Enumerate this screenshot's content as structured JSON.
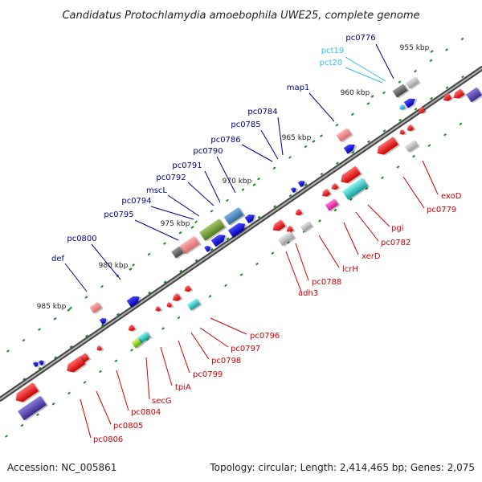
{
  "title": "Candidatus Protochlamydia amoebophila UWE25, complete genome",
  "footer": {
    "accession": "Accession: NC_005861",
    "topology": "Topology: circular; Length: 2,414,465 bp; Genes: 2,075"
  },
  "kbp_ticks": [
    "955 kbp",
    "960 kbp",
    "965 kbp",
    "970 kbp",
    "975 kbp",
    "980 kbp",
    "985 kbp"
  ],
  "colors": {
    "forward_label": "#00008b",
    "reverse_label": "#cc0000",
    "tRNA_label": "#33bbee",
    "backbone": "#8a8a8a",
    "tick": "#1a8a1a"
  },
  "forward_labels": [
    "pc0776",
    "map1",
    "pc0784",
    "pc0785",
    "pc0786",
    "pc0790",
    "pc0791",
    "pc0792",
    "mscL",
    "pc0794",
    "pc0795",
    "pc0800",
    "def"
  ],
  "trna_labels": [
    "pct19",
    "pct20"
  ],
  "reverse_labels": [
    "exoD",
    "pc0779",
    "pgi",
    "pc0782",
    "xerD",
    "lcrH",
    "pc0788",
    "adh3",
    "pc0796",
    "pc0797",
    "pc0798",
    "pc0799",
    "tpiA",
    "secG",
    "pc0804",
    "pc0805",
    "pc0806"
  ]
}
